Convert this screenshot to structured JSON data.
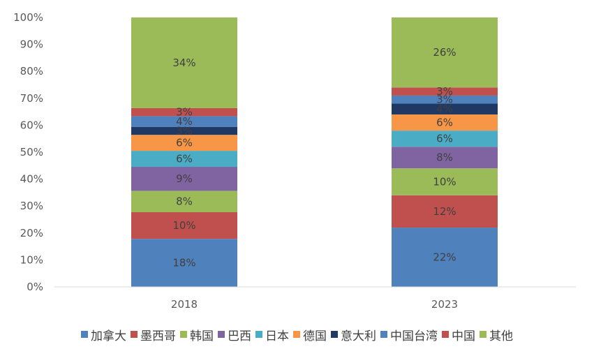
{
  "chart_data": {
    "type": "bar",
    "stacked": true,
    "categories": [
      "2018",
      "2023"
    ],
    "yticks": [
      "0%",
      "10%",
      "20%",
      "30%",
      "40%",
      "50%",
      "60%",
      "70%",
      "80%",
      "90%",
      "100%"
    ],
    "ylim": [
      0,
      100
    ],
    "legend_position": "bottom",
    "series": [
      {
        "name": "加拿大",
        "color": "#4f81bd",
        "values": [
          18,
          22
        ],
        "labels": [
          "18%",
          "22%"
        ]
      },
      {
        "name": "墨西哥",
        "color": "#c0504d",
        "values": [
          10,
          12
        ],
        "labels": [
          "10%",
          "12%"
        ]
      },
      {
        "name": "韩国",
        "color": "#9bbb59",
        "values": [
          8,
          10
        ],
        "labels": [
          "8%",
          "10%"
        ]
      },
      {
        "name": "巴西",
        "color": "#8064a2",
        "values": [
          9,
          8
        ],
        "labels": [
          "9%",
          "8%"
        ]
      },
      {
        "name": "日本",
        "color": "#4bacc6",
        "values": [
          6,
          6
        ],
        "labels": [
          "6%",
          "6%"
        ]
      },
      {
        "name": "德国",
        "color": "#f79646",
        "values": [
          6,
          6
        ],
        "labels": [
          "6%",
          "6%"
        ]
      },
      {
        "name": "意大利",
        "color": "#1f3864",
        "values": [
          3,
          4
        ],
        "labels": [
          "3%",
          "4%"
        ]
      },
      {
        "name": "中国台湾",
        "color": "#4f81bd",
        "values": [
          4,
          3
        ],
        "labels": [
          "4%",
          "3%"
        ]
      },
      {
        "name": "中国",
        "color": "#c0504d",
        "values": [
          3,
          3
        ],
        "labels": [
          "3%",
          "3%"
        ]
      },
      {
        "name": "其他",
        "color": "#9bbb59",
        "values": [
          34,
          26
        ],
        "labels": [
          "34%",
          "26%"
        ]
      }
    ]
  }
}
